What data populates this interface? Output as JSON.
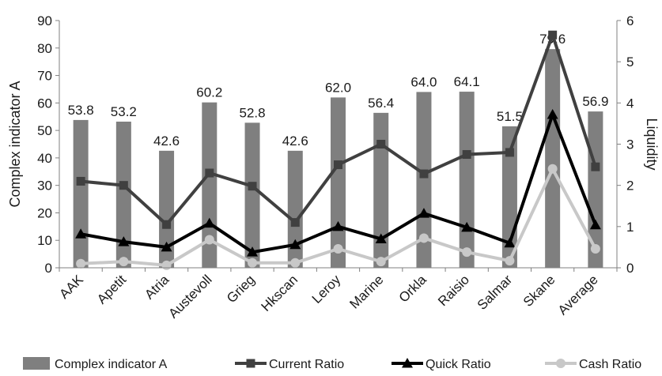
{
  "chart_data": {
    "type": "bar",
    "categories": [
      "AAK",
      "Apetit",
      "Atria",
      "Austevoll",
      "Grieg",
      "Hkscan",
      "Leroy",
      "Marine",
      "Orkla",
      "Raisio",
      "Salmar",
      "Skane",
      "Average"
    ],
    "bar_series": {
      "name": "Complex indicator A",
      "values": [
        53.8,
        53.2,
        42.6,
        60.2,
        52.8,
        42.6,
        62.0,
        56.4,
        64.0,
        64.1,
        51.5,
        79.6,
        56.9
      ],
      "labels": [
        "53.8",
        "53.2",
        "42.6",
        "60.2",
        "52.8",
        "42.6",
        "62.0",
        "56.4",
        "64.0",
        "64.1",
        "51.5",
        "79.6",
        "56.9"
      ],
      "color": "#7f7f7f"
    },
    "line_series": [
      {
        "name": "Current Ratio",
        "marker": "square",
        "color": "#404040",
        "values": [
          2.1,
          2.0,
          1.05,
          2.3,
          1.98,
          1.1,
          2.5,
          3.0,
          2.28,
          2.75,
          2.8,
          5.65,
          2.45
        ]
      },
      {
        "name": "Quick Ratio",
        "marker": "triangle",
        "color": "#000000",
        "values": [
          0.82,
          0.63,
          0.5,
          1.08,
          0.38,
          0.56,
          1.0,
          0.7,
          1.32,
          0.98,
          0.6,
          3.72,
          1.04
        ]
      },
      {
        "name": "Cash Ratio",
        "marker": "circle",
        "color": "#c8c8c8",
        "values": [
          0.1,
          0.15,
          0.06,
          0.68,
          0.12,
          0.12,
          0.46,
          0.15,
          0.72,
          0.38,
          0.17,
          2.4,
          0.46
        ]
      }
    ],
    "ylabel": "Complex indicator A",
    "y2label": "Liquidity",
    "ylim": [
      0,
      90
    ],
    "y2lim": [
      0,
      6
    ],
    "yticks": [
      0,
      10,
      20,
      30,
      40,
      50,
      60,
      70,
      80,
      90
    ],
    "y2ticks": [
      0,
      1,
      2,
      3,
      4,
      5,
      6
    ],
    "grid": false,
    "legend_position": "bottom"
  }
}
